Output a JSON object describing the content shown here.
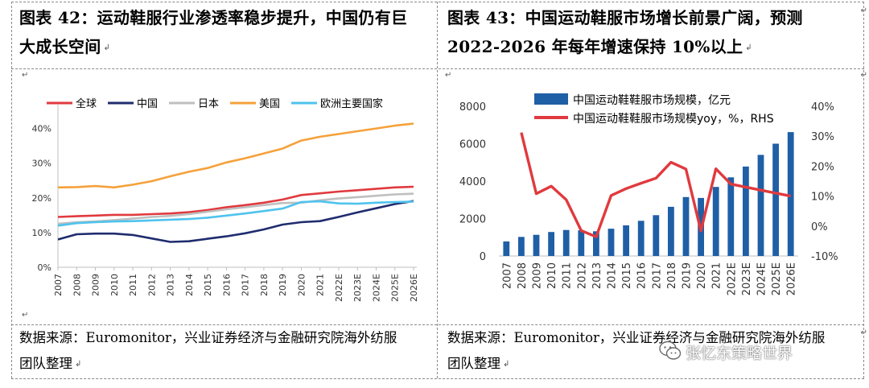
{
  "left_panel": {
    "title_line1": "图表 42：运动鞋服行业渗透率稳步提升，中国仍有巨",
    "title_line2": "大成长空间",
    "source_line1": "数据来源：Euromonitor，兴业证券经济与金融研究院海外纺服",
    "source_line2": "团队整理"
  },
  "right_panel": {
    "title_line1": "图表 43：中国运动鞋服市场增长前景广阔，预测",
    "title_line2": "2022-2026 年每年增速保持 10%以上",
    "source_line1": "数据来源：Euromonitor，兴业证券经济与金融研究院海外纺服",
    "source_line2": "团队整理"
  },
  "watermark_text": "张忆东策略世界",
  "marks": {
    "paragraph": "↵",
    "arrow": "↲"
  },
  "chart_data": [
    {
      "type": "line",
      "x": [
        "2007",
        "2008",
        "2009",
        "2010",
        "2011",
        "2012",
        "2013",
        "2014",
        "2015",
        "2016",
        "2017",
        "2018",
        "2019",
        "2020",
        "2021",
        "2022E",
        "2023E",
        "2024E",
        "2025E",
        "2026E"
      ],
      "ylim": [
        0,
        45
      ],
      "yticks": [
        0,
        10,
        20,
        30,
        40
      ],
      "ytick_labels": [
        "0%",
        "10%",
        "20%",
        "30%",
        "40%"
      ],
      "legend_position": "top",
      "grid": false,
      "series": [
        {
          "name": "全球",
          "color": "#e03a3e",
          "values": [
            14.5,
            14.7,
            14.9,
            15.1,
            15.1,
            15.3,
            15.5,
            15.9,
            16.5,
            17.3,
            17.9,
            18.6,
            19.5,
            20.8,
            21.3,
            21.8,
            22.2,
            22.6,
            23.0,
            23.2
          ]
        },
        {
          "name": "中国",
          "color": "#1f2c6e",
          "values": [
            8.0,
            9.5,
            9.7,
            9.7,
            9.3,
            8.3,
            7.3,
            7.5,
            8.2,
            8.9,
            9.8,
            10.9,
            12.3,
            13.0,
            13.3,
            14.5,
            15.8,
            17.0,
            18.2,
            19.1
          ]
        },
        {
          "name": "日本",
          "color": "#bfbfbf",
          "values": [
            12.5,
            13.0,
            13.2,
            13.6,
            14.0,
            14.5,
            14.8,
            15.3,
            16.0,
            16.7,
            17.3,
            17.9,
            18.5,
            18.6,
            19.3,
            19.8,
            20.2,
            20.6,
            21.0,
            21.2
          ]
        },
        {
          "name": "美国",
          "color": "#f5a13a",
          "values": [
            23.0,
            23.1,
            23.4,
            23.0,
            23.8,
            24.8,
            26.2,
            27.5,
            28.6,
            30.2,
            31.4,
            32.8,
            34.2,
            36.5,
            37.6,
            38.4,
            39.2,
            40.0,
            40.8,
            41.4
          ]
        },
        {
          "name": "欧洲主要国家",
          "color": "#4fc3ee",
          "values": [
            12.0,
            12.7,
            13.0,
            13.2,
            13.3,
            13.5,
            13.7,
            13.9,
            14.3,
            14.9,
            15.5,
            16.2,
            16.9,
            18.8,
            19.0,
            18.4,
            18.3,
            18.6,
            18.8,
            18.9
          ]
        }
      ]
    },
    {
      "type": "bar",
      "categories": [
        "2007",
        "2008",
        "2009",
        "2010",
        "2011",
        "2012",
        "2013",
        "2014",
        "2015",
        "2016",
        "2017",
        "2018",
        "2019",
        "2020",
        "2021",
        "2022E",
        "2023E",
        "2024E",
        "2025E",
        "2026E"
      ],
      "ylim": [
        0,
        8000
      ],
      "yticks": [
        0,
        2000,
        4000,
        6000,
        8000
      ],
      "ytick_labels": [
        "0",
        "2000",
        "4000",
        "6000",
        "8000"
      ],
      "y2lim": [
        -10,
        40
      ],
      "y2ticks": [
        -10,
        0,
        10,
        20,
        30,
        40
      ],
      "y2tick_labels": [
        "-10%",
        "0%",
        "10%",
        "20%",
        "30%",
        "40%"
      ],
      "legend_position": "top",
      "grid": false,
      "series": [
        {
          "name": "中国运动鞋鞋服市场规模，亿元",
          "type": "bar",
          "axis": "left",
          "color": "#1f5fa6",
          "values": [
            780,
            1020,
            1130,
            1280,
            1390,
            1370,
            1320,
            1460,
            1640,
            1880,
            2180,
            2630,
            3150,
            3100,
            3690,
            4200,
            4780,
            5400,
            6000,
            6620
          ]
        },
        {
          "name": "中国运动鞋鞋服市场规模yoy，%，RHS",
          "type": "line",
          "axis": "right",
          "color": "#e03a3e",
          "values": [
            null,
            31.2,
            10.8,
            13.3,
            8.8,
            -1.5,
            -3.6,
            10.2,
            12.5,
            14.3,
            16.0,
            21.3,
            19.0,
            -1.6,
            19.1,
            14.0,
            13.0,
            12.0,
            11.0,
            10.0
          ]
        }
      ]
    }
  ]
}
